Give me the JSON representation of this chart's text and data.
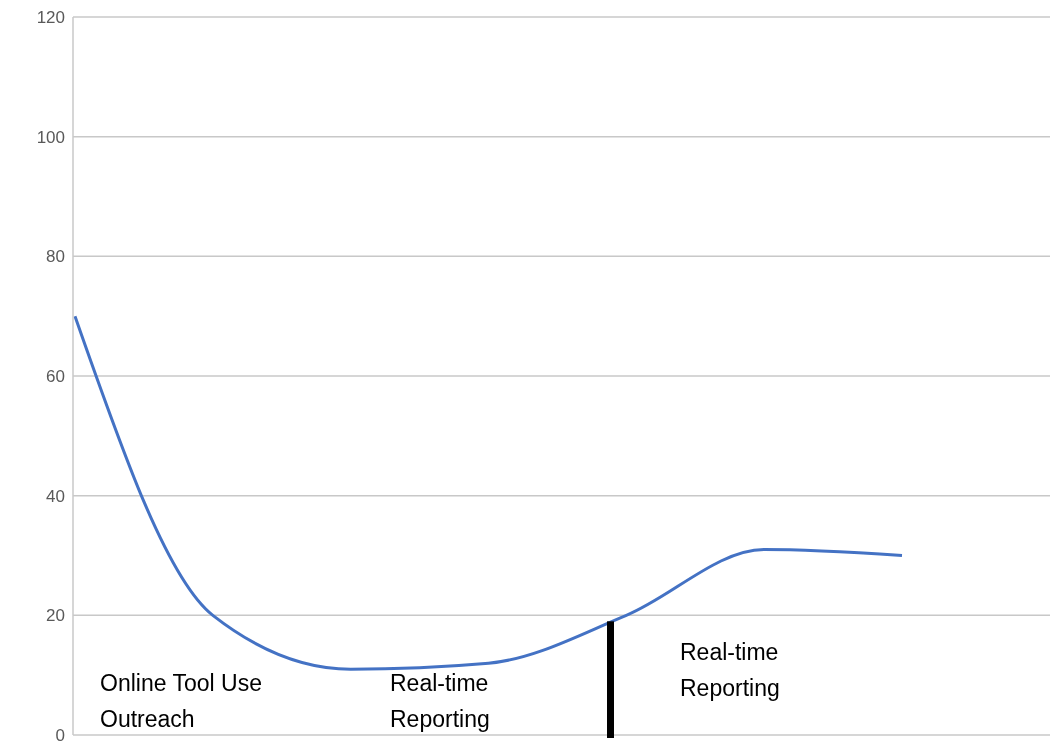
{
  "chart_data": {
    "type": "line",
    "categories": [
      null,
      null,
      null,
      null,
      null,
      null,
      null
    ],
    "series": [
      {
        "color": "#4472c4",
        "values": [
          70,
          20,
          11,
          12,
          20,
          31,
          30
        ]
      }
    ],
    "ylim": [
      0,
      120
    ],
    "yticks": [
      0,
      20,
      40,
      60,
      80,
      100,
      120
    ],
    "grid": "y",
    "marker": "none",
    "line_style": "solid",
    "tick_labels": "y",
    "annotations": [
      "Online Tool Use\nOutreach",
      "Real-time\nReporting",
      "Real-time\nReporting"
    ]
  }
}
